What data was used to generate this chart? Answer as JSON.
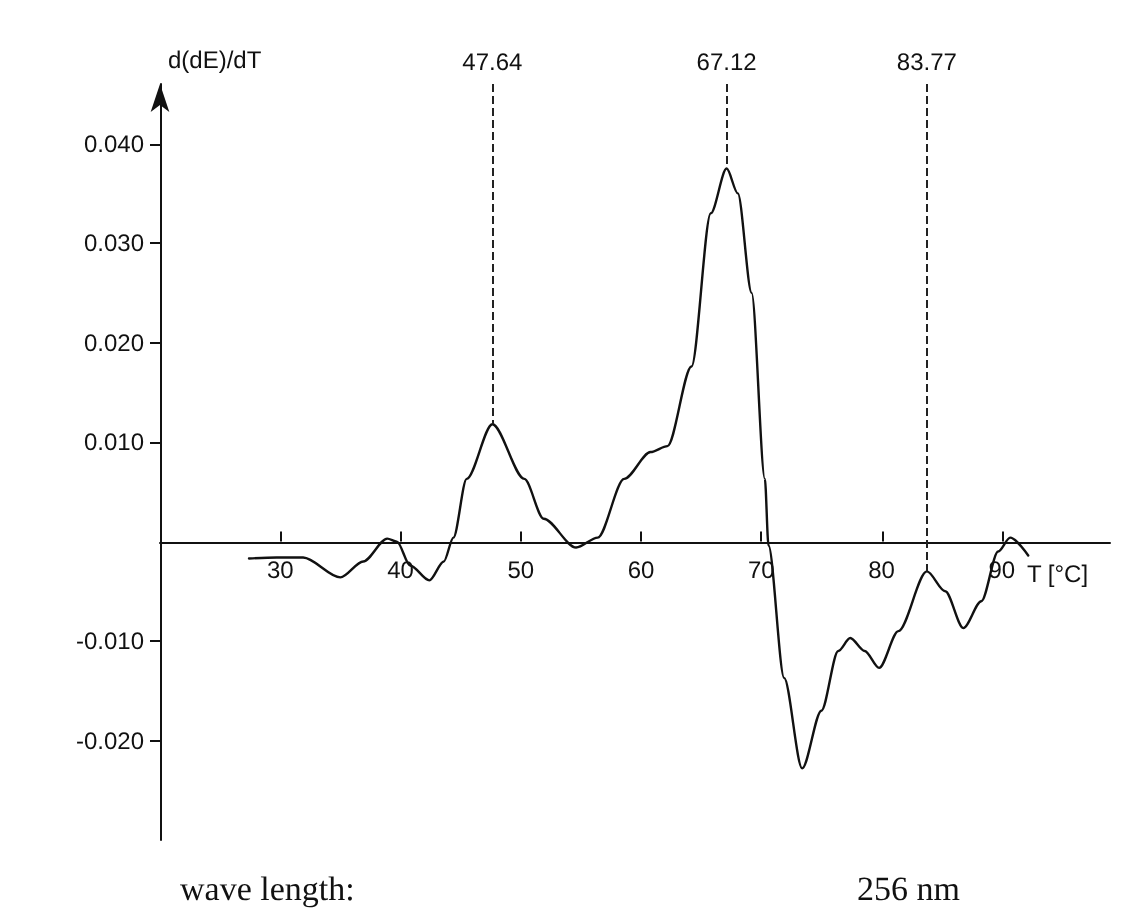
{
  "chart_data": {
    "type": "line",
    "ylabel": "d(dE)/dT",
    "xlabel": "T [°C]",
    "annotations": [
      "wave length:",
      "256 nm"
    ],
    "x": [
      27.4,
      29.7,
      31.9,
      35.0,
      36.9,
      38.9,
      39.7,
      40.8,
      42.4,
      43.6,
      44.4,
      45.5,
      47.64,
      50.3,
      51.9,
      54.6,
      56.4,
      58.6,
      60.8,
      62.2,
      64.2,
      65.8,
      67.12,
      68.05,
      69.2,
      70.3,
      70.6,
      71.9,
      73.4,
      75.0,
      76.4,
      77.4,
      78.6,
      79.8,
      81.4,
      83.77,
      85.3,
      86.8,
      88.3,
      89.7,
      90.7,
      92.2
    ],
    "series": [
      {
        "color": "#111111",
        "values": [
          -0.0017,
          -0.0016,
          -0.0016,
          -0.0036,
          -0.002,
          0.0003,
          0.0,
          -0.0024,
          -0.0039,
          -0.002,
          0.0004,
          0.0063,
          0.0118,
          0.0063,
          0.0023,
          -0.0006,
          0.0004,
          0.0063,
          0.009,
          0.0096,
          0.0176,
          0.033,
          0.0375,
          0.035,
          0.025,
          0.0063,
          -0.0004,
          -0.0137,
          -0.0228,
          -0.017,
          -0.011,
          -0.0097,
          -0.011,
          -0.0127,
          -0.009,
          -0.003,
          -0.005,
          -0.0087,
          -0.006,
          -0.001,
          0.0004,
          -0.0014
        ]
      }
    ],
    "xlim": [
      20,
      99
    ],
    "xticks": [
      30,
      40,
      50,
      60,
      70,
      80,
      90
    ],
    "ylim": [
      -0.03,
      0.046
    ],
    "yticks": [
      {
        "value": 0.04,
        "label": "0.040"
      },
      {
        "value": 0.03,
        "label": "0.030"
      },
      {
        "value": 0.02,
        "label": "0.020"
      },
      {
        "value": 0.01,
        "label": "0.010"
      },
      {
        "value": -0.01,
        "label": "-0.010"
      },
      {
        "value": -0.02,
        "label": "-0.020"
      }
    ],
    "ref_lines": [
      {
        "axis": "x",
        "value": 47.64,
        "label": "47.64",
        "line_style": "dashed"
      },
      {
        "axis": "x",
        "value": 67.12,
        "label": "67.12",
        "line_style": "dashed"
      },
      {
        "axis": "x",
        "value": 83.77,
        "label": "83.77",
        "line_style": "dashed"
      }
    ],
    "grid": false,
    "marker": "none",
    "line_style": "solid"
  }
}
